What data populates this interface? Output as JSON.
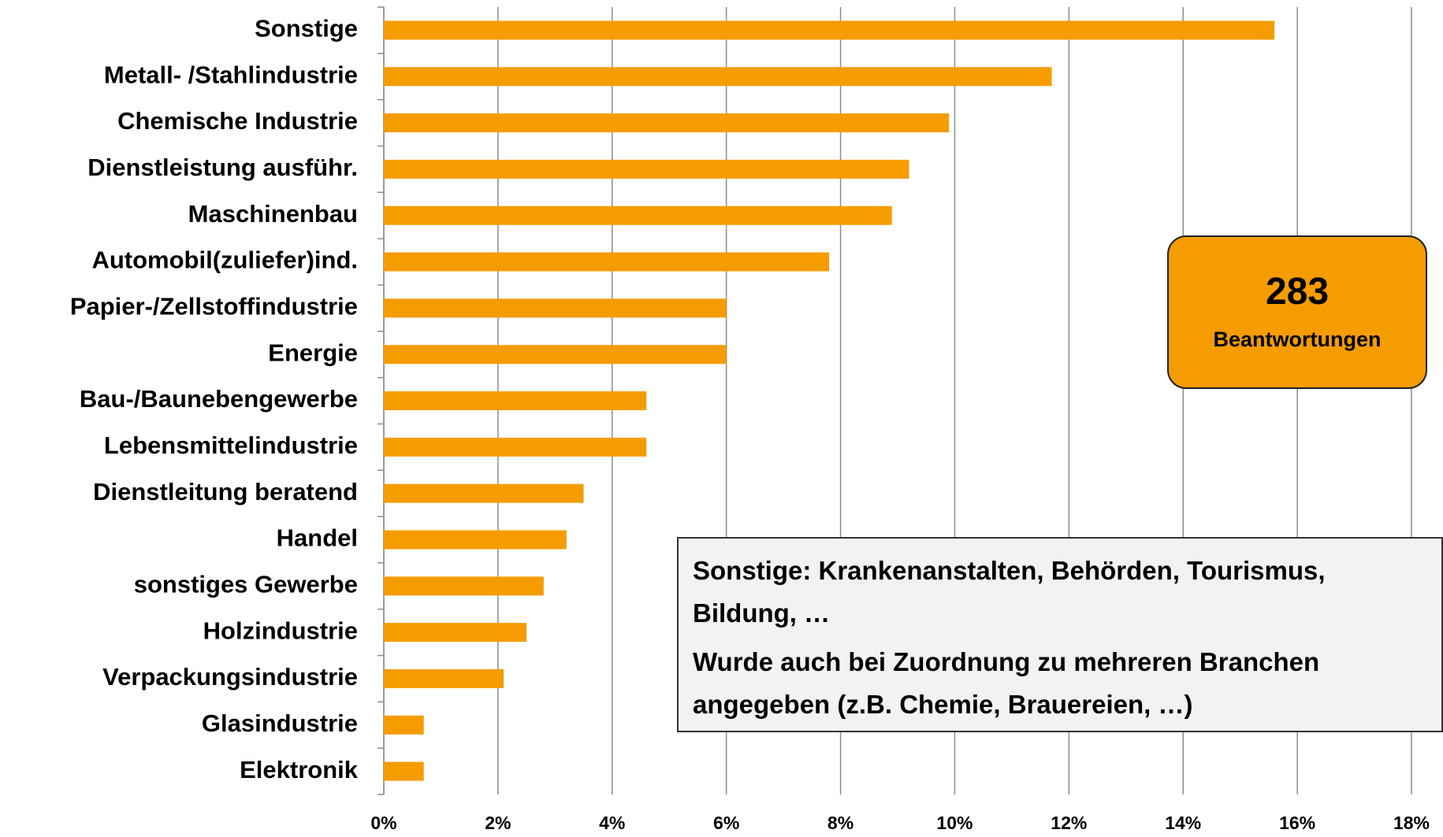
{
  "chart_data": {
    "type": "bar",
    "orientation": "horizontal",
    "categories": [
      "Sonstige",
      "Metall- /Stahlindustrie",
      "Chemische Industrie",
      "Dienstleistung ausführ.",
      "Maschinenbau",
      "Automobil(zuliefer)ind.",
      "Papier-/Zellstoffindustrie",
      "Energie",
      "Bau-/Baunebengewerbe",
      "Lebensmittelindustrie",
      "Dienstleitung beratend",
      "Handel",
      "sonstiges Gewerbe",
      "Holzindustrie",
      "Verpackungsindustrie",
      "Glasindustrie",
      "Elektronik"
    ],
    "values": [
      15.6,
      11.7,
      9.9,
      9.2,
      8.9,
      7.8,
      6.0,
      6.0,
      4.6,
      4.6,
      3.5,
      3.2,
      2.8,
      2.5,
      2.1,
      0.7,
      0.7
    ],
    "color": "#f59c00",
    "xlim": [
      0,
      18
    ],
    "xticks": [
      {
        "value": 0,
        "label": "0%"
      },
      {
        "value": 2,
        "label": "2%"
      },
      {
        "value": 4,
        "label": "4%"
      },
      {
        "value": 6,
        "label": "6%"
      },
      {
        "value": 8,
        "label": "8%"
      },
      {
        "value": 10,
        "label": "10%"
      },
      {
        "value": 12,
        "label": "12%"
      },
      {
        "value": 14,
        "label": "14%"
      },
      {
        "value": 16,
        "label": "16%"
      },
      {
        "value": 18,
        "label": "18%"
      }
    ],
    "grid": true,
    "annotations": {
      "count": "283",
      "count_label": "Beantwortungen",
      "note": [
        "Sonstige: Krankenanstalten, Behörden, Tourismus, Bildung, …",
        "Wurde auch bei Zuordnung zu mehreren Branchen angegeben (z.B. Chemie, Brauereien, …)"
      ]
    }
  }
}
